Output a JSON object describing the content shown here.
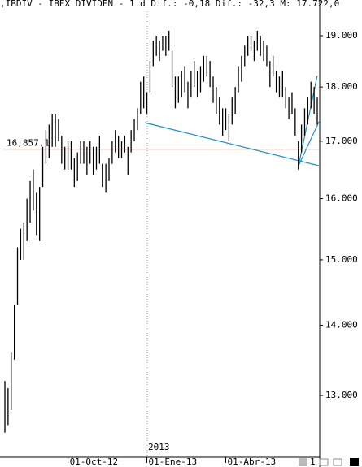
{
  "chart_data": {
    "type": "range_bar",
    "header": ",IBDIV - IBEX DIVIDEN - 1 d Dif.: -0,18 Dif.: -32,3 M: 17.722,0",
    "year_label": "2013",
    "toolbar_label": "1",
    "log": true,
    "color": "#000000",
    "ylim": [
      12180,
      19730
    ],
    "yticks": [
      {
        "value": 13000,
        "label": "13.000"
      },
      {
        "value": 14000,
        "label": "14.000"
      },
      {
        "value": 15000,
        "label": "15.000"
      },
      {
        "value": 16000,
        "label": "16.000"
      },
      {
        "value": 17000,
        "label": "17.000"
      },
      {
        "value": 18000,
        "label": "18.000"
      },
      {
        "value": 19000,
        "label": "19.000"
      }
    ],
    "hline": {
      "value": 16857.1,
      "label": "16,857,1",
      "color": "#d9480f"
    },
    "categories": [
      null,
      null,
      null,
      null,
      null,
      null,
      null,
      null,
      null,
      null,
      null,
      null,
      null,
      null,
      null,
      null,
      null,
      null,
      null,
      null,
      "01-Oct-12",
      null,
      null,
      null,
      null,
      null,
      null,
      null,
      null,
      null,
      null,
      null,
      null,
      null,
      null,
      null,
      null,
      null,
      null,
      null,
      null,
      null,
      null,
      null,
      null,
      "01-Ene-13",
      null,
      null,
      null,
      null,
      null,
      null,
      null,
      null,
      null,
      null,
      null,
      null,
      null,
      null,
      null,
      null,
      null,
      null,
      null,
      null,
      null,
      null,
      null,
      null,
      "01-Abr-13",
      null,
      null,
      null,
      null,
      null,
      null,
      null,
      null,
      null,
      null,
      null,
      null,
      null,
      null,
      null,
      null,
      null,
      null,
      null,
      null,
      null,
      null,
      null,
      null,
      null,
      null,
      null,
      null,
      null
    ],
    "high": [
      13200,
      13100,
      13600,
      14300,
      15200,
      15500,
      15600,
      16000,
      16300,
      16500,
      16100,
      16200,
      16900,
      17200,
      17300,
      17500,
      17500,
      17400,
      17100,
      16900,
      17000,
      17000,
      16700,
      16800,
      17000,
      17000,
      16900,
      17000,
      16900,
      16900,
      17100,
      16600,
      16600,
      16700,
      17000,
      17200,
      17100,
      17000,
      17100,
      16900,
      17200,
      17400,
      17600,
      18100,
      18200,
      17900,
      18500,
      18900,
      19000,
      18900,
      19000,
      19000,
      19100,
      18700,
      18200,
      18200,
      18300,
      18400,
      18100,
      18300,
      18500,
      18300,
      18400,
      18600,
      18600,
      18500,
      18200,
      18000,
      17800,
      17600,
      17600,
      17500,
      17800,
      18000,
      18400,
      18600,
      18800,
      19000,
      19000,
      18900,
      19100,
      19000,
      18900,
      18800,
      18500,
      18600,
      18300,
      18200,
      18300,
      18000,
      17800,
      17900,
      17600,
      17000,
      17300,
      17600,
      17800,
      18100,
      18000,
      17800
    ],
    "low": [
      12500,
      12600,
      12800,
      13500,
      14300,
      15000,
      15000,
      15300,
      15600,
      15800,
      15400,
      15300,
      16200,
      16600,
      16700,
      16900,
      16900,
      17000,
      16600,
      16500,
      16500,
      16500,
      16200,
      16300,
      16600,
      16600,
      16400,
      16600,
      16400,
      16500,
      16600,
      16200,
      16100,
      16300,
      16600,
      16800,
      16700,
      16700,
      16800,
      16400,
      16800,
      17000,
      17200,
      17500,
      17600,
      17500,
      17900,
      18400,
      18600,
      18500,
      18700,
      18600,
      18700,
      18000,
      17600,
      17700,
      17800,
      17900,
      17600,
      17800,
      18000,
      17800,
      17900,
      18100,
      18200,
      18000,
      17700,
      17500,
      17300,
      17100,
      17200,
      17000,
      17300,
      17500,
      17900,
      18100,
      18400,
      18600,
      18700,
      18500,
      18700,
      18600,
      18500,
      18400,
      18000,
      18200,
      17900,
      17800,
      17800,
      17600,
      17400,
      17500,
      17100,
      16500,
      16800,
      17100,
      17300,
      17600,
      17500,
      17300
    ]
  }
}
